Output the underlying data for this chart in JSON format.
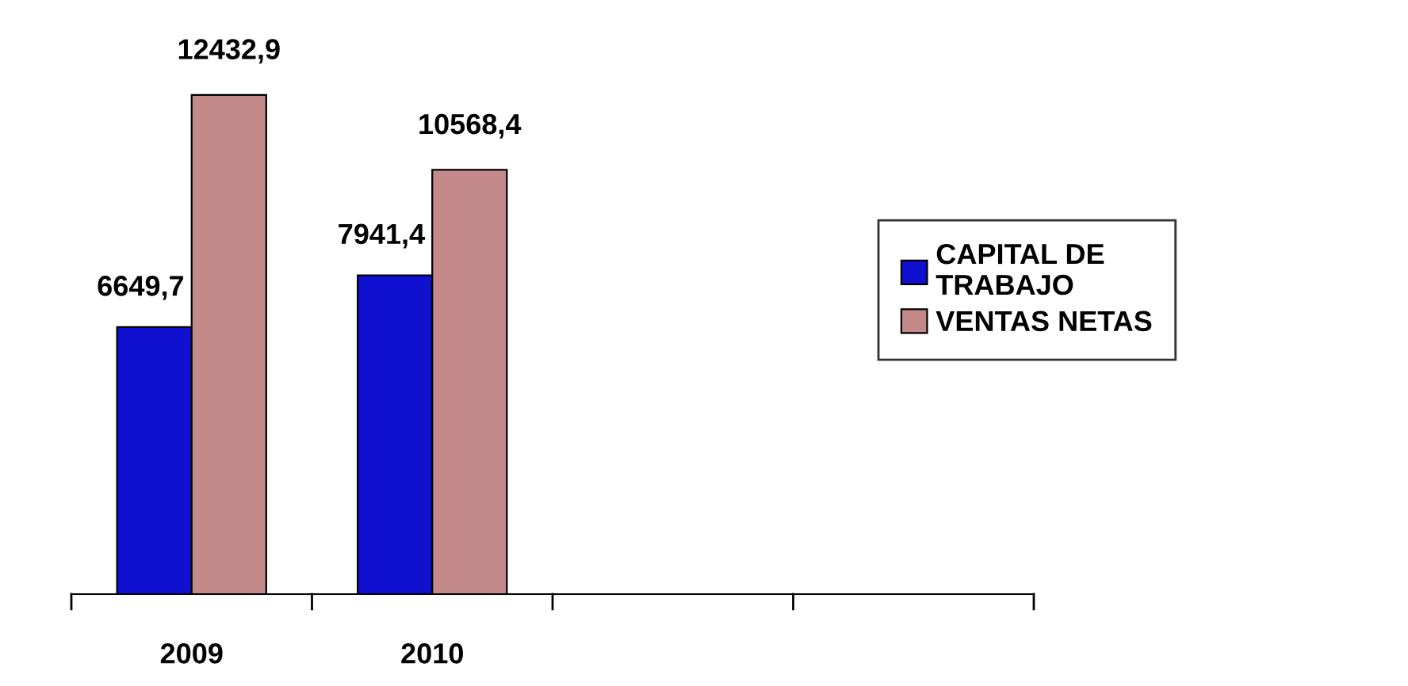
{
  "chart_data": {
    "type": "bar",
    "categories": [
      "2009",
      "2010",
      null,
      null
    ],
    "series": [
      {
        "name": "CAPITAL DE\nTRABAJO",
        "color": "#1010d0",
        "values": [
          6649.7,
          7941.4,
          null,
          null
        ],
        "value_labels": [
          "6649,7",
          "7941,4",
          null,
          null
        ]
      },
      {
        "name": "VENTAS NETAS",
        "color": "#c48a8a",
        "values": [
          12432.9,
          10568.4,
          null,
          null
        ],
        "value_labels": [
          "12432,9",
          "10568,4",
          null,
          null
        ]
      }
    ],
    "legend": "right",
    "grid": false
  }
}
